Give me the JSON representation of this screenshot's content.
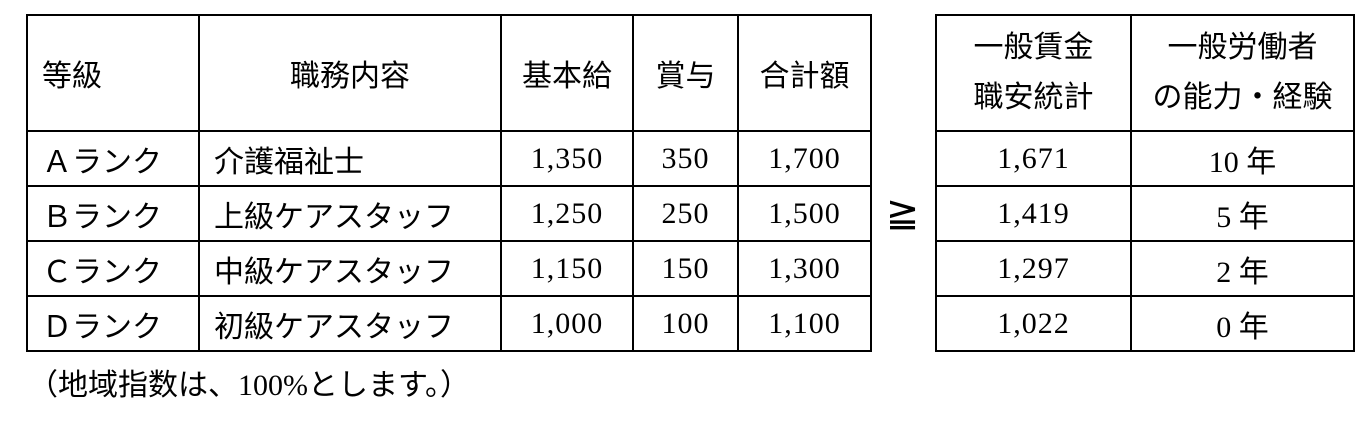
{
  "pay_table": {
    "headers": {
      "grade": "等級",
      "job": "職務内容",
      "base_salary": "基本給",
      "bonus": "賞与",
      "total": "合計額"
    },
    "rows": [
      {
        "grade": "Ａランク",
        "job": "介護福祉士",
        "base_salary": "1,350",
        "bonus": "350",
        "total": "1,700"
      },
      {
        "grade": "Ｂランク",
        "job": "上級ケアスタッフ",
        "base_salary": "1,250",
        "bonus": "250",
        "total": "1,500"
      },
      {
        "grade": "Ｃランク",
        "job": "中級ケアスタッフ",
        "base_salary": "1,150",
        "bonus": "150",
        "total": "1,300"
      },
      {
        "grade": "Ｄランク",
        "job": "初級ケアスタッフ",
        "base_salary": "1,000",
        "bonus": "100",
        "total": "1,100"
      }
    ]
  },
  "comparison_symbol": "≧",
  "general_wage_table": {
    "headers": {
      "wage_line1": "一般賃金",
      "wage_line2": "職安統計",
      "experience_line1": "一般労働者",
      "experience_line2": "の能力・経験"
    },
    "rows": [
      {
        "wage": "1,671",
        "experience": "10 年"
      },
      {
        "wage": "1,419",
        "experience": "5 年"
      },
      {
        "wage": "1,297",
        "experience": "2 年"
      },
      {
        "wage": "1,022",
        "experience": "0 年"
      }
    ]
  },
  "footnote": "（地域指数は、100%とします。）",
  "colors": {
    "border": "#000000",
    "text": "#000000",
    "background": "#ffffff"
  }
}
